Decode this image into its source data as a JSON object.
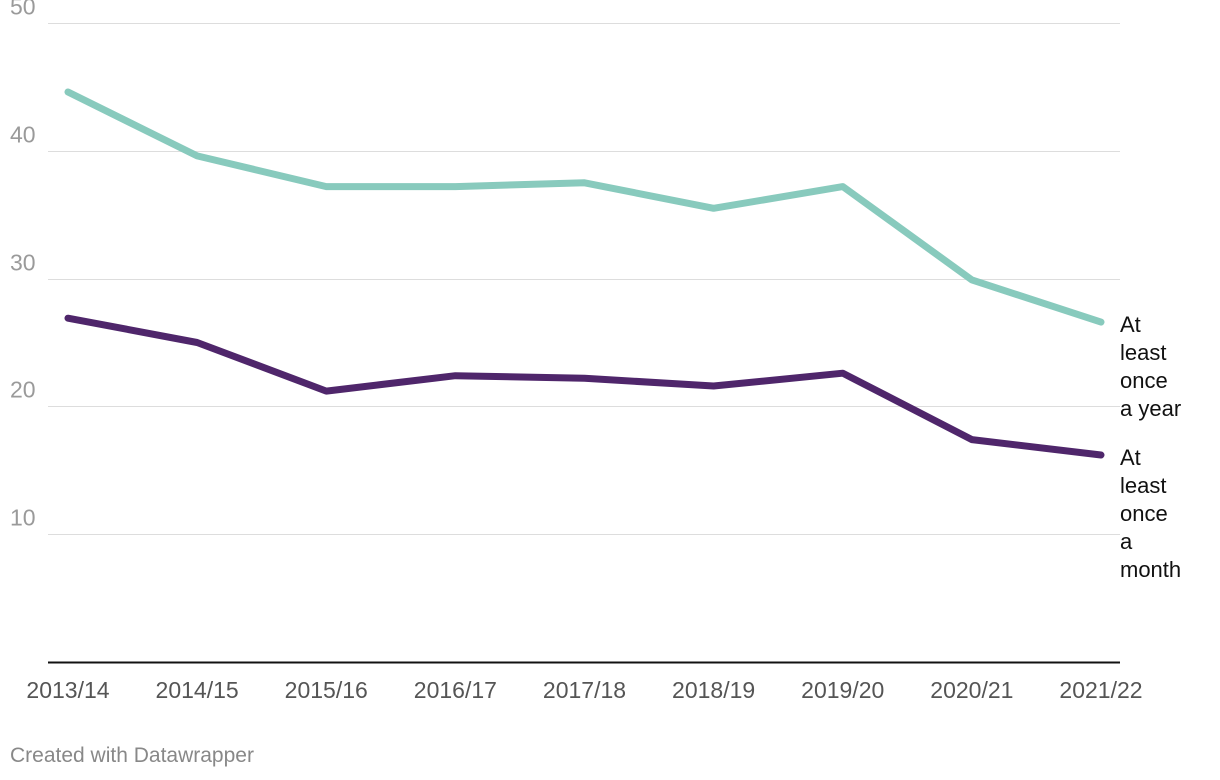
{
  "chart_data": {
    "type": "line",
    "title": "",
    "xlabel": "",
    "ylabel": "",
    "categories": [
      "2013/14",
      "2014/15",
      "2015/16",
      "2016/17",
      "2017/18",
      "2018/19",
      "2019/20",
      "2020/21",
      "2021/22"
    ],
    "ylim": [
      0,
      50
    ],
    "yticks": [
      10,
      20,
      30,
      40,
      50
    ],
    "grid": true,
    "legend": "direct labels at line ends (right)",
    "series": [
      {
        "name": "At least once a year",
        "label_lines": [
          "At",
          "least",
          "once",
          "a year"
        ],
        "color": "#88cabd",
        "values": [
          44.6,
          39.6,
          37.2,
          37.2,
          37.5,
          35.5,
          37.2,
          29.9,
          26.6
        ]
      },
      {
        "name": "At least once a month",
        "label_lines": [
          "At",
          "least",
          "once",
          "a",
          "month"
        ],
        "color": "#4f266b",
        "values": [
          26.9,
          25.0,
          21.2,
          22.4,
          22.2,
          21.6,
          22.6,
          17.4,
          16.2
        ]
      }
    ]
  },
  "footer": {
    "credit": "Created with Datawrapper"
  }
}
